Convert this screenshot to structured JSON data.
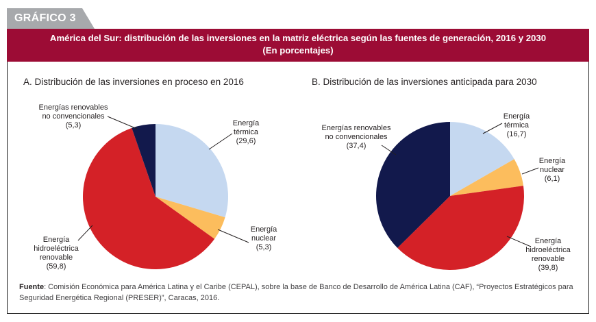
{
  "figure_tag": "GRÁFICO 3",
  "title_line1": "América del Sur: distribución de las inversiones en la matriz eléctrica según las fuentes de generación, 2016 y 2030",
  "title_line2": "(En porcentajes)",
  "source_label": "Fuente",
  "source_text": ": Comisión Económica para América Latina y el Caribe (CEPAL), sobre la base de Banco de Desarrollo de América Latina (CAF), “Proyectos Estratégicos para Seguridad Energética Regional (PRESER)”, Caracas, 2016.",
  "colors": {
    "termica": "#c5d8f0",
    "nuclear": "#fcbd5d",
    "hidro": "#d42127",
    "renovables_nc": "#12194c",
    "header": "#9c0c35",
    "tab": "#a7a9ac"
  },
  "chart_data": [
    {
      "type": "pie",
      "title": "A. Distribución de las inversiones en proceso en 2016",
      "slices": [
        {
          "key": "termica",
          "label": [
            "Energía",
            "térmica",
            "(29,6)"
          ],
          "value": 29.6
        },
        {
          "key": "nuclear",
          "label": [
            "Energía",
            "nuclear",
            "(5,3)"
          ],
          "value": 5.3
        },
        {
          "key": "hidro",
          "label": [
            "Energía",
            "hidroeléctrica",
            "renovable",
            "(59,8)"
          ],
          "value": 59.8
        },
        {
          "key": "renovables_nc",
          "label": [
            "Energías renovables",
            "no convencionales",
            "(5,3)"
          ],
          "value": 5.3
        }
      ]
    },
    {
      "type": "pie",
      "title": "B.  Distribución de las inversiones anticipada para 2030",
      "slices": [
        {
          "key": "termica",
          "label": [
            "Energía",
            "térmica",
            "(16,7)"
          ],
          "value": 16.7
        },
        {
          "key": "nuclear",
          "label": [
            "Energía",
            "nuclear",
            "(6,1)"
          ],
          "value": 6.1
        },
        {
          "key": "hidro",
          "label": [
            "Energía",
            "hidroeléctrica",
            "renovable",
            "(39,8)"
          ],
          "value": 39.8
        },
        {
          "key": "renovables_nc",
          "label": [
            "Energías renovables",
            "no convencionales",
            "(37,4)"
          ],
          "value": 37.4
        }
      ]
    }
  ]
}
